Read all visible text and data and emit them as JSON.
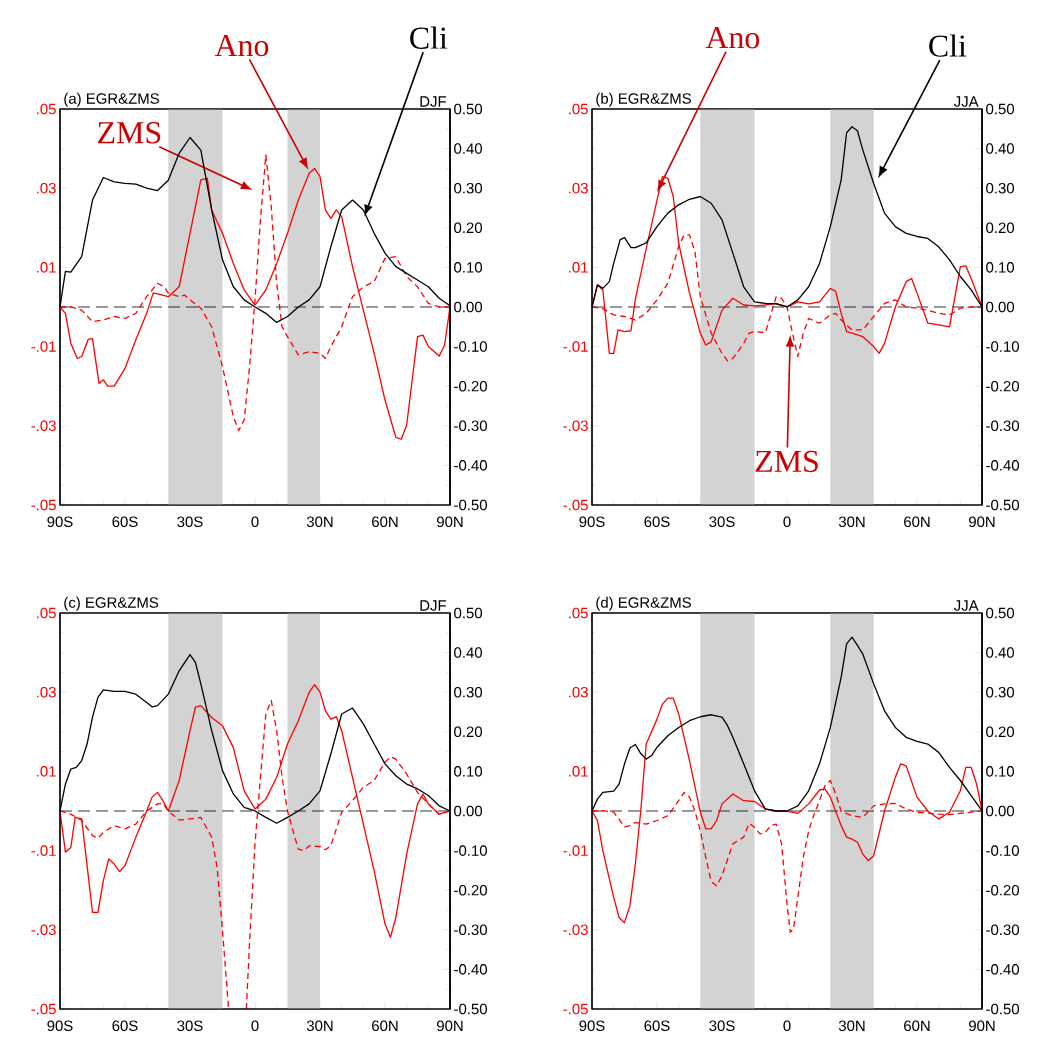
{
  "chart_data": [
    {
      "type": "line",
      "title": "(a) EGR&ZMS",
      "subtitle": "DJF",
      "xlim": [
        -90,
        90
      ],
      "xticks": [
        {
          "value": -90,
          "label": "90S"
        },
        {
          "value": -60,
          "label": "60S"
        },
        {
          "value": -30,
          "label": "30S"
        },
        0,
        {
          "value": 30,
          "label": "30N"
        },
        {
          "value": 60,
          "label": "60N"
        },
        {
          "value": 90,
          "label": "90N"
        }
      ],
      "ylim": [
        -0.05,
        0.05
      ],
      "yticks": [
        {
          "value": -0.05,
          "label": "-.05"
        },
        {
          "value": -0.03,
          "label": "-.03"
        },
        {
          "value": -0.01,
          "label": "-.01"
        },
        {
          "value": 0.01,
          "label": ".01"
        },
        {
          "value": 0.03,
          "label": ".03"
        },
        {
          "value": 0.05,
          "label": ".05"
        }
      ],
      "y2lim": [
        -0.5,
        0.5
      ],
      "y2ticks": [
        {
          "value": -0.5,
          "label": "-0.50"
        },
        {
          "value": -0.4,
          "label": "-0.40"
        },
        {
          "value": -0.3,
          "label": "-0.30"
        },
        {
          "value": -0.2,
          "label": "-0.20"
        },
        {
          "value": -0.1,
          "label": "-0.10"
        },
        {
          "value": 0,
          "label": "0.00"
        },
        {
          "value": 0.1,
          "label": "0.10"
        },
        {
          "value": 0.2,
          "label": "0.20"
        },
        {
          "value": 0.3,
          "label": "0.30"
        },
        {
          "value": 0.4,
          "label": "0.40"
        },
        {
          "value": 0.5,
          "label": "0.50"
        }
      ],
      "bands": [
        {
          "axis": "x",
          "from": -40,
          "to": -15,
          "color": "#d3d3d3"
        },
        {
          "axis": "x",
          "from": 15,
          "to": 30,
          "color": "#d3d3d3"
        }
      ],
      "ref_lines": [
        {
          "axis": "y",
          "value": 0,
          "color": "#000000",
          "line_style": "dashed"
        }
      ],
      "series": [
        {
          "name": "Ano",
          "color": "#ff0000",
          "line_style": "solid",
          "x": [
            -90,
            -87.5,
            -85,
            -82,
            -80,
            -77,
            -75,
            -72,
            -70,
            -68,
            -65,
            -60,
            -55,
            -50,
            -47,
            -45,
            -40,
            -35,
            -30,
            -25,
            -22,
            -20,
            -15,
            -10,
            -5,
            0,
            5,
            10,
            15,
            20,
            25,
            27.5,
            30,
            32.5,
            35,
            37.5,
            40,
            45,
            50,
            55,
            60,
            65,
            67.5,
            70,
            75,
            77.5,
            80,
            85,
            87.5,
            90
          ],
          "values": [
            0,
            -0.0016,
            -0.0092,
            -0.013,
            -0.0125,
            -0.0082,
            -0.008,
            -0.0193,
            -0.0184,
            -0.02,
            -0.02,
            -0.0155,
            -0.0083,
            -0.0016,
            0.0035,
            0.0033,
            0.0026,
            0.0051,
            0.0186,
            0.0321,
            0.0325,
            0.0245,
            0.0186,
            0.011,
            0.0043,
            0.0005,
            0.0043,
            0.011,
            0.0186,
            0.027,
            0.0338,
            0.035,
            0.0329,
            0.0245,
            0.0224,
            0.0245,
            0.0228,
            0.0102,
            -0.0008,
            -0.0117,
            -0.0235,
            -0.0329,
            -0.0334,
            -0.0298,
            -0.0075,
            -0.0071,
            -0.01,
            -0.0124,
            -0.0096,
            0
          ]
        },
        {
          "name": "Cli",
          "color": "#000000",
          "line_style": "solid",
          "axis": "y2",
          "x": [
            -90,
            -87.5,
            -85,
            -80,
            -75,
            -70,
            -65,
            -60,
            -55,
            -50,
            -45,
            -40,
            -35,
            -30,
            -25,
            -20,
            -15,
            -10,
            -5,
            0,
            5,
            10,
            15,
            20,
            25,
            30,
            35,
            40,
            45,
            50,
            55,
            60,
            65,
            70,
            75,
            80,
            85,
            90
          ],
          "values": [
            0,
            0.09,
            0.088,
            0.127,
            0.27,
            0.327,
            0.316,
            0.312,
            0.31,
            0.3,
            0.294,
            0.32,
            0.388,
            0.428,
            0.396,
            0.245,
            0.119,
            0.051,
            0.018,
            0,
            -0.016,
            -0.039,
            -0.024,
            0,
            0.018,
            0.051,
            0.152,
            0.245,
            0.27,
            0.245,
            0.186,
            0.136,
            0.102,
            0.085,
            0.068,
            0.051,
            0.022,
            0.003
          ]
        },
        {
          "name": "ZMS",
          "color": "#ff0000",
          "line_style": "dashed",
          "x": [
            -90,
            -85,
            -80,
            -75,
            -70,
            -65,
            -60,
            -55,
            -50,
            -45,
            -42,
            -40,
            -35,
            -32.5,
            -30,
            -25,
            -20,
            -15,
            -10,
            -7.5,
            -5,
            -2.5,
            0,
            2.5,
            5,
            7.5,
            10,
            12.5,
            15,
            20,
            25,
            30,
            32.5,
            35,
            40,
            45,
            50,
            55,
            60,
            65,
            70,
            75,
            80,
            85,
            90
          ],
          "values": [
            0,
            0,
            -0.0008,
            -0.0037,
            -0.0033,
            -0.0024,
            -0.0029,
            -0.0016,
            0.0026,
            0.006,
            0.0051,
            0.0035,
            0.0026,
            0.003,
            0.0018,
            -0.0003,
            -0.005,
            -0.0151,
            -0.0277,
            -0.0312,
            -0.0285,
            -0.015,
            0.0018,
            0.022,
            0.0384,
            0.0253,
            0.006,
            -0.005,
            -0.0075,
            -0.0121,
            -0.0113,
            -0.0117,
            -0.013,
            -0.01,
            -0.005,
            0.0026,
            0.0051,
            0.0064,
            0.0123,
            0.0127,
            0.0077,
            0.0051,
            0.0009,
            0,
            0
          ]
        }
      ]
    },
    {
      "type": "line",
      "title": "(b) EGR&ZMS",
      "subtitle": "JJA",
      "xlim": [
        -90,
        90
      ],
      "xticks": [
        {
          "value": -90,
          "label": "90S"
        },
        {
          "value": -60,
          "label": "60S"
        },
        {
          "value": -30,
          "label": "30S"
        },
        0,
        {
          "value": 30,
          "label": "30N"
        },
        {
          "value": 60,
          "label": "60N"
        },
        {
          "value": 90,
          "label": "90N"
        }
      ],
      "ylim": [
        -0.05,
        0.05
      ],
      "yticks": [
        {
          "value": -0.05,
          "label": "-.05"
        },
        {
          "value": -0.03,
          "label": "-.03"
        },
        {
          "value": -0.01,
          "label": "-.01"
        },
        {
          "value": 0.01,
          "label": ".01"
        },
        {
          "value": 0.03,
          "label": ".03"
        },
        {
          "value": 0.05,
          "label": ".05"
        }
      ],
      "y2lim": [
        -0.5,
        0.5
      ],
      "y2ticks": [
        {
          "value": -0.5,
          "label": "-0.50"
        },
        {
          "value": -0.4,
          "label": "-0.40"
        },
        {
          "value": -0.3,
          "label": "-0.30"
        },
        {
          "value": -0.2,
          "label": "-0.20"
        },
        {
          "value": -0.1,
          "label": "-0.10"
        },
        {
          "value": 0,
          "label": "0.00"
        },
        {
          "value": 0.1,
          "label": "0.10"
        },
        {
          "value": 0.2,
          "label": "0.20"
        },
        {
          "value": 0.3,
          "label": "0.30"
        },
        {
          "value": 0.4,
          "label": "0.40"
        },
        {
          "value": 0.5,
          "label": "0.50"
        }
      ],
      "bands": [
        {
          "axis": "x",
          "from": -40,
          "to": -15,
          "color": "#d3d3d3"
        },
        {
          "axis": "x",
          "from": 20,
          "to": 40,
          "color": "#d3d3d3"
        }
      ],
      "ref_lines": [
        {
          "axis": "y",
          "value": 0,
          "color": "#000000",
          "line_style": "dashed"
        }
      ],
      "series": [
        {
          "name": "Ano",
          "color": "#ff0000",
          "line_style": "solid",
          "x": [
            -90,
            -87.5,
            -85,
            -82,
            -80,
            -78,
            -75,
            -72,
            -70,
            -65,
            -60,
            -57.5,
            -55,
            -52.5,
            -50,
            -45,
            -40,
            -37.5,
            -35,
            -30,
            -25,
            -20,
            -15,
            -10,
            -5,
            0,
            5,
            10,
            15,
            20,
            22.5,
            25,
            27.5,
            30,
            35,
            40,
            42.5,
            45,
            50,
            55,
            57.5,
            60,
            65,
            70,
            75,
            80,
            82.5,
            85,
            90
          ],
          "values": [
            0,
            0.0056,
            0.0043,
            -0.0117,
            -0.0117,
            -0.0058,
            -0.0062,
            -0.006,
            0.002,
            0.0147,
            0.027,
            0.0329,
            0.0325,
            0.0279,
            0.0161,
            0.0035,
            -0.0066,
            -0.0096,
            -0.0088,
            -0.0008,
            0.0022,
            0.0005,
            0.0003,
            0.0005,
            0.0009,
            0,
            0.0013,
            0.0008,
            0.0013,
            0.0047,
            0.0039,
            -0.0016,
            -0.0062,
            -0.0066,
            -0.0075,
            -0.01,
            -0.0117,
            -0.0092,
            0,
            0.0064,
            0.0072,
            0.0035,
            -0.0041,
            -0.0045,
            -0.005,
            0.0102,
            0.0104,
            0.0072,
            0
          ]
        },
        {
          "name": "Cli",
          "color": "#000000",
          "line_style": "solid",
          "axis": "y2",
          "x": [
            -90,
            -87.5,
            -85,
            -82,
            -80,
            -77,
            -75,
            -72,
            -70,
            -65,
            -60,
            -55,
            -50,
            -45,
            -40,
            -35,
            -30,
            -25,
            -20,
            -15,
            -10,
            -5,
            0,
            5,
            10,
            15,
            20,
            25,
            27.5,
            30,
            32.5,
            35,
            40,
            45,
            50,
            55,
            60,
            65,
            70,
            75,
            80,
            85,
            90
          ],
          "values": [
            0,
            0.056,
            0.047,
            0.064,
            0.11,
            0.17,
            0.175,
            0.15,
            0.15,
            0.162,
            0.203,
            0.237,
            0.258,
            0.272,
            0.279,
            0.262,
            0.22,
            0.136,
            0.051,
            0.013,
            0.009,
            0.008,
            0,
            0.018,
            0.051,
            0.11,
            0.203,
            0.321,
            0.44,
            0.455,
            0.445,
            0.396,
            0.312,
            0.237,
            0.203,
            0.186,
            0.178,
            0.173,
            0.152,
            0.119,
            0.077,
            0.043,
            0
          ]
        },
        {
          "name": "ZMS",
          "color": "#ff0000",
          "line_style": "dashed",
          "x": [
            -90,
            -85,
            -80,
            -75,
            -70,
            -65,
            -60,
            -55,
            -50,
            -47.5,
            -45,
            -42.5,
            -40,
            -35,
            -30,
            -27.5,
            -25,
            -20,
            -17.5,
            -15,
            -10,
            -5,
            -2.5,
            0,
            2.5,
            5,
            7.5,
            10,
            15,
            20,
            22.5,
            25,
            30,
            35,
            40,
            45,
            50,
            55,
            60,
            65,
            70,
            75,
            80,
            85,
            90
          ],
          "values": [
            0,
            -0.0004,
            -0.002,
            -0.0024,
            -0.0033,
            -0.0016,
            0.0018,
            0.006,
            0.0152,
            0.0182,
            0.0182,
            0.014,
            0.0026,
            -0.0066,
            -0.0117,
            -0.0136,
            -0.013,
            -0.0092,
            -0.0066,
            -0.0062,
            -0.0065,
            0.0026,
            0.0022,
            0,
            -0.0066,
            -0.0125,
            -0.0066,
            -0.0029,
            -0.0041,
            -0.002,
            -0.0016,
            -0.0033,
            -0.0058,
            -0.0058,
            -0.0024,
            0.0009,
            0.0018,
            0,
            -0.0003,
            -0.0008,
            -0.0016,
            -0.002,
            -0.0003,
            0,
            0
          ]
        }
      ]
    },
    {
      "type": "line",
      "title": "(c) EGR&ZMS",
      "subtitle": "DJF",
      "xlim": [
        -90,
        90
      ],
      "xticks": [
        {
          "value": -90,
          "label": "90S"
        },
        {
          "value": -60,
          "label": "60S"
        },
        {
          "value": -30,
          "label": "30S"
        },
        0,
        {
          "value": 30,
          "label": "30N"
        },
        {
          "value": 60,
          "label": "60N"
        },
        {
          "value": 90,
          "label": "90N"
        }
      ],
      "ylim": [
        -0.05,
        0.05
      ],
      "yticks": [
        {
          "value": -0.05,
          "label": "-.05"
        },
        {
          "value": -0.03,
          "label": "-.03"
        },
        {
          "value": -0.01,
          "label": "-.01"
        },
        {
          "value": 0.01,
          "label": ".01"
        },
        {
          "value": 0.03,
          "label": ".03"
        },
        {
          "value": 0.05,
          "label": ".05"
        }
      ],
      "y2lim": [
        -0.5,
        0.5
      ],
      "y2ticks": [
        {
          "value": -0.5,
          "label": "-0.50"
        },
        {
          "value": -0.4,
          "label": "-0.40"
        },
        {
          "value": -0.3,
          "label": "-0.30"
        },
        {
          "value": -0.2,
          "label": "-0.20"
        },
        {
          "value": -0.1,
          "label": "-0.10"
        },
        {
          "value": 0,
          "label": "0.00"
        },
        {
          "value": 0.1,
          "label": "0.10"
        },
        {
          "value": 0.2,
          "label": "0.20"
        },
        {
          "value": 0.3,
          "label": "0.30"
        },
        {
          "value": 0.4,
          "label": "0.40"
        },
        {
          "value": 0.5,
          "label": "0.50"
        }
      ],
      "bands": [
        {
          "axis": "x",
          "from": -40,
          "to": -15,
          "color": "#d3d3d3"
        },
        {
          "axis": "x",
          "from": 15,
          "to": 30,
          "color": "#d3d3d3"
        }
      ],
      "ref_lines": [
        {
          "axis": "y",
          "value": 0,
          "color": "#000000",
          "line_style": "dashed"
        }
      ],
      "series": [
        {
          "color": "#ff0000",
          "line_style": "solid",
          "x": [
            -90,
            -87.5,
            -85,
            -83,
            -80,
            -75,
            -72.5,
            -70,
            -67.5,
            -65,
            -62.5,
            -60,
            -55,
            -50,
            -47.5,
            -45,
            -42.5,
            -40,
            -35,
            -30,
            -27.5,
            -25,
            -20,
            -15,
            -10,
            -5,
            0,
            5,
            10,
            15,
            20,
            25,
            27.5,
            30,
            32.5,
            35,
            37.5,
            40,
            45,
            50,
            55,
            60,
            62.5,
            65,
            70,
            75,
            77.5,
            80,
            85,
            90
          ],
          "values": [
            0,
            -0.0104,
            -0.0092,
            -0.0016,
            -0.002,
            -0.0256,
            -0.0256,
            -0.0176,
            -0.0121,
            -0.0134,
            -0.0153,
            -0.0138,
            -0.0066,
            0,
            0.0035,
            0.0047,
            0.0026,
            0,
            0.0077,
            0.0203,
            0.0262,
            0.0266,
            0.0236,
            0.0215,
            0.016,
            0.0051,
            0.0005,
            0.003,
            0.0085,
            0.0169,
            0.0228,
            0.03,
            0.0319,
            0.03,
            0.0253,
            0.0232,
            0.0238,
            0.0203,
            0.0085,
            -0.0033,
            -0.0151,
            -0.0285,
            -0.0319,
            -0.0269,
            -0.0109,
            0.0018,
            0.0043,
            0.0018,
            -0.0008,
            0
          ]
        },
        {
          "color": "#000000",
          "line_style": "solid",
          "axis": "y2",
          "x": [
            -90,
            -87.5,
            -85,
            -82.5,
            -80,
            -77.5,
            -75,
            -72.5,
            -70,
            -65,
            -60,
            -55,
            -50,
            -47.5,
            -45,
            -40,
            -35,
            -30,
            -27.5,
            -25,
            -20,
            -15,
            -10,
            -5,
            0,
            5,
            10,
            15,
            20,
            25,
            30,
            35,
            40,
            45,
            50,
            55,
            60,
            65,
            70,
            75,
            80,
            85,
            90
          ],
          "values": [
            0,
            0.068,
            0.106,
            0.11,
            0.127,
            0.169,
            0.237,
            0.287,
            0.306,
            0.302,
            0.302,
            0.295,
            0.274,
            0.263,
            0.266,
            0.295,
            0.354,
            0.395,
            0.375,
            0.321,
            0.203,
            0.102,
            0.043,
            0.009,
            0,
            -0.016,
            -0.031,
            -0.016,
            0,
            0.018,
            0.051,
            0.144,
            0.245,
            0.26,
            0.22,
            0.169,
            0.119,
            0.089,
            0.068,
            0.056,
            0.039,
            0.013,
            0
          ]
        },
        {
          "color": "#ff0000",
          "line_style": "dashed",
          "x": [
            -90,
            -85,
            -80,
            -75,
            -72.5,
            -70,
            -65,
            -60,
            -55,
            -50,
            -45,
            -42.5,
            -40,
            -35,
            -30,
            -25,
            -20,
            -17.5,
            -15,
            -12.5,
            -12.2,
            -8,
            -4,
            -2.5,
            0,
            2.5,
            5,
            7.5,
            10,
            12.5,
            15,
            17.5,
            20,
            22.5,
            25,
            30,
            32.5,
            35,
            40,
            45,
            50,
            55,
            60,
            62.5,
            65,
            70,
            75,
            80,
            85,
            90
          ],
          "values": [
            0,
            -0.0008,
            -0.0024,
            -0.0062,
            -0.0069,
            -0.0054,
            -0.0037,
            -0.0045,
            -0.0033,
            0,
            0.0018,
            0.0019,
            0,
            -0.0023,
            -0.002,
            -0.0016,
            -0.0066,
            -0.0142,
            -0.0302,
            -0.0479,
            -0.05,
            null,
            -0.05,
            -0.033,
            -0.0083,
            0.0085,
            0.0245,
            0.0279,
            0.0203,
            0.0085,
            0,
            -0.005,
            -0.0096,
            -0.01,
            -0.0088,
            -0.009,
            -0.0098,
            -0.0088,
            -0.0003,
            0.0026,
            0.006,
            0.0077,
            0.0123,
            0.0137,
            0.0131,
            0.0093,
            0.0047,
            0.0018,
            -0.0008,
            0
          ]
        }
      ]
    },
    {
      "type": "line",
      "title": "(d) EGR&ZMS",
      "subtitle": "JJA",
      "xlim": [
        -90,
        90
      ],
      "xticks": [
        {
          "value": -90,
          "label": "90S"
        },
        {
          "value": -60,
          "label": "60S"
        },
        {
          "value": -30,
          "label": "30S"
        },
        0,
        {
          "value": 30,
          "label": "30N"
        },
        {
          "value": 60,
          "label": "60N"
        },
        {
          "value": 90,
          "label": "90N"
        }
      ],
      "ylim": [
        -0.05,
        0.05
      ],
      "yticks": [
        {
          "value": -0.05,
          "label": "-.05"
        },
        {
          "value": -0.03,
          "label": "-.03"
        },
        {
          "value": -0.01,
          "label": "-.01"
        },
        {
          "value": 0.01,
          "label": ".01"
        },
        {
          "value": 0.03,
          "label": ".03"
        },
        {
          "value": 0.05,
          "label": ".05"
        }
      ],
      "y2lim": [
        -0.5,
        0.5
      ],
      "y2ticks": [
        {
          "value": -0.5,
          "label": "-0.50"
        },
        {
          "value": -0.4,
          "label": "-0.40"
        },
        {
          "value": -0.3,
          "label": "-0.30"
        },
        {
          "value": -0.2,
          "label": "-0.20"
        },
        {
          "value": -0.1,
          "label": "-0.10"
        },
        {
          "value": 0,
          "label": "0.00"
        },
        {
          "value": 0.1,
          "label": "0.10"
        },
        {
          "value": 0.2,
          "label": "0.20"
        },
        {
          "value": 0.3,
          "label": "0.30"
        },
        {
          "value": 0.4,
          "label": "0.40"
        },
        {
          "value": 0.5,
          "label": "0.50"
        }
      ],
      "bands": [
        {
          "axis": "x",
          "from": -40,
          "to": -15,
          "color": "#d3d3d3"
        },
        {
          "axis": "x",
          "from": 20,
          "to": 40,
          "color": "#d3d3d3"
        }
      ],
      "ref_lines": [
        {
          "axis": "y",
          "value": 0,
          "color": "#000000",
          "line_style": "dashed"
        }
      ],
      "series": [
        {
          "color": "#ff0000",
          "line_style": "solid",
          "x": [
            -90,
            -87.5,
            -85,
            -80,
            -77.5,
            -75,
            -72.5,
            -70,
            -67.5,
            -65,
            -60,
            -57.5,
            -55,
            -52.5,
            -50,
            -45,
            -40,
            -37.5,
            -35,
            -32.5,
            -30,
            -25,
            -20,
            -15,
            -10,
            -5,
            0,
            5,
            10,
            15,
            17.5,
            20,
            25,
            27.5,
            30,
            32.5,
            35,
            37.5,
            40,
            45,
            50,
            52.5,
            55,
            60,
            65,
            70,
            75,
            80,
            82.5,
            85,
            87.5,
            90
          ],
          "values": [
            0,
            -0.0024,
            -0.01,
            -0.0218,
            -0.0269,
            -0.0282,
            -0.0239,
            -0.0134,
            0,
            0.0169,
            0.0232,
            0.027,
            0.0285,
            0.0285,
            0.0245,
            0.0127,
            -0.0003,
            -0.0045,
            -0.0045,
            -0.0024,
            0.0018,
            0.0043,
            0.0026,
            0.0024,
            0.0005,
            0,
            0,
            -0.0006,
            0.0018,
            0.0053,
            0.0056,
            0.0035,
            -0.0037,
            -0.0066,
            -0.0071,
            -0.0079,
            -0.0109,
            -0.0125,
            -0.0113,
            0,
            0.0085,
            0.0119,
            0.0114,
            0.0035,
            0,
            -0.002,
            -0.0003,
            0.0051,
            0.011,
            0.011,
            0.0068,
            0
          ]
        },
        {
          "color": "#000000",
          "line_style": "solid",
          "axis": "y2",
          "x": [
            -90,
            -87.5,
            -85,
            -80,
            -77.5,
            -75,
            -72.5,
            -70,
            -67.5,
            -65,
            -62.5,
            -60,
            -55,
            -50,
            -45,
            -40,
            -35,
            -30,
            -27.5,
            -25,
            -20,
            -15,
            -10,
            -5,
            0,
            5,
            10,
            15,
            20,
            25,
            27.5,
            30,
            32.5,
            35,
            40,
            45,
            50,
            55,
            60,
            65,
            70,
            75,
            80,
            85,
            90
          ],
          "values": [
            0,
            0.03,
            0.047,
            0.05,
            0.068,
            0.119,
            0.159,
            0.168,
            0.145,
            0.131,
            0.14,
            0.161,
            0.19,
            0.211,
            0.228,
            0.238,
            0.243,
            0.237,
            0.216,
            0.186,
            0.119,
            0.051,
            0.005,
            0,
            0,
            0.013,
            0.051,
            0.119,
            0.211,
            0.338,
            0.422,
            0.439,
            0.418,
            0.396,
            0.321,
            0.253,
            0.211,
            0.186,
            0.176,
            0.169,
            0.148,
            0.11,
            0.077,
            0.039,
            0
          ]
        },
        {
          "color": "#ff0000",
          "line_style": "dashed",
          "x": [
            -90,
            -85,
            -80,
            -77.5,
            -75,
            -72.5,
            -70,
            -65,
            -60,
            -55,
            -50,
            -47.5,
            -45,
            -42.5,
            -40,
            -37.5,
            -35,
            -32.5,
            -30,
            -25,
            -20,
            -17.5,
            -15,
            -12.5,
            -10,
            -7.5,
            -5,
            -2.5,
            0,
            1.5,
            3,
            5,
            7.5,
            10,
            12.5,
            15,
            17.5,
            20,
            22.5,
            25,
            30,
            35,
            40,
            45,
            50,
            55,
            60,
            70,
            75,
            80,
            85,
            90
          ],
          "values": [
            0,
            0.0001,
            -0.0003,
            -0.0021,
            -0.004,
            -0.0037,
            -0.0029,
            -0.0033,
            -0.0024,
            -0.0012,
            0.0026,
            0.0047,
            0.0035,
            0,
            -0.005,
            -0.0117,
            -0.0178,
            -0.0189,
            -0.0163,
            -0.0083,
            -0.0066,
            -0.0031,
            -0.0041,
            -0.0058,
            -0.0054,
            -0.0037,
            -0.0033,
            -0.0083,
            -0.0235,
            -0.0306,
            -0.0298,
            -0.0218,
            -0.0117,
            -0.005,
            -0.0008,
            0.0026,
            0.0064,
            0.0077,
            0.0043,
            -0.0001,
            -0.0012,
            -0.0016,
            0.0013,
            0.0018,
            0.0019,
            0.0005,
            -0.0003,
            -0.0008,
            -0.0009,
            -0.0006,
            -0.0003,
            0
          ]
        }
      ]
    }
  ]
}
